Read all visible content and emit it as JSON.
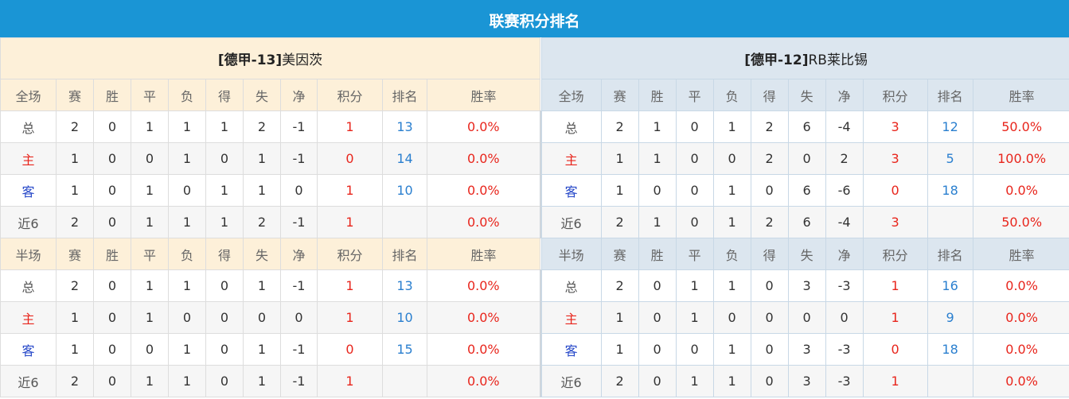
{
  "title": "联赛积分排名",
  "teams": [
    {
      "name_prefix": "[德甲-13]",
      "name": "美因茨",
      "full": {
        "label": "全场",
        "rows": [
          [
            "总",
            "2",
            "0",
            "1",
            "1",
            "1",
            "2",
            "-1",
            "1",
            "13",
            "0.0%"
          ],
          [
            "主",
            "1",
            "0",
            "0",
            "1",
            "0",
            "1",
            "-1",
            "0",
            "14",
            "0.0%"
          ],
          [
            "客",
            "1",
            "0",
            "1",
            "0",
            "1",
            "1",
            "0",
            "1",
            "10",
            "0.0%"
          ],
          [
            "近6",
            "2",
            "0",
            "1",
            "1",
            "1",
            "2",
            "-1",
            "1",
            "",
            "0.0%"
          ]
        ]
      },
      "half": {
        "label": "半场",
        "rows": [
          [
            "总",
            "2",
            "0",
            "1",
            "1",
            "0",
            "1",
            "-1",
            "1",
            "13",
            "0.0%"
          ],
          [
            "主",
            "1",
            "0",
            "1",
            "0",
            "0",
            "0",
            "0",
            "1",
            "10",
            "0.0%"
          ],
          [
            "客",
            "1",
            "0",
            "0",
            "1",
            "0",
            "1",
            "-1",
            "0",
            "15",
            "0.0%"
          ],
          [
            "近6",
            "2",
            "0",
            "1",
            "1",
            "0",
            "1",
            "-1",
            "1",
            "",
            "0.0%"
          ]
        ]
      }
    },
    {
      "name_prefix": "[德甲-12]",
      "name": "RB莱比锡",
      "full": {
        "label": "全场",
        "rows": [
          [
            "总",
            "2",
            "1",
            "0",
            "1",
            "2",
            "6",
            "-4",
            "3",
            "12",
            "50.0%"
          ],
          [
            "主",
            "1",
            "1",
            "0",
            "0",
            "2",
            "0",
            "2",
            "3",
            "5",
            "100.0%"
          ],
          [
            "客",
            "1",
            "0",
            "0",
            "1",
            "0",
            "6",
            "-6",
            "0",
            "18",
            "0.0%"
          ],
          [
            "近6",
            "2",
            "1",
            "0",
            "1",
            "2",
            "6",
            "-4",
            "3",
            "",
            "50.0%"
          ]
        ]
      },
      "half": {
        "label": "半场",
        "rows": [
          [
            "总",
            "2",
            "0",
            "1",
            "1",
            "0",
            "3",
            "-3",
            "1",
            "16",
            "0.0%"
          ],
          [
            "主",
            "1",
            "0",
            "1",
            "0",
            "0",
            "0",
            "0",
            "1",
            "9",
            "0.0%"
          ],
          [
            "客",
            "1",
            "0",
            "0",
            "1",
            "0",
            "3",
            "-3",
            "0",
            "18",
            "0.0%"
          ],
          [
            "近6",
            "2",
            "0",
            "1",
            "1",
            "0",
            "3",
            "-3",
            "1",
            "",
            "0.0%"
          ]
        ]
      }
    }
  ],
  "columns": [
    "赛",
    "胜",
    "平",
    "负",
    "得",
    "失",
    "净",
    "积分",
    "排名",
    "胜率"
  ],
  "colors": {
    "header": "#1a95d5",
    "left_bg": "#fdf0d9",
    "right_bg": "#dce6ef",
    "red": "#e8251c",
    "blue": "#2a7fcf"
  }
}
